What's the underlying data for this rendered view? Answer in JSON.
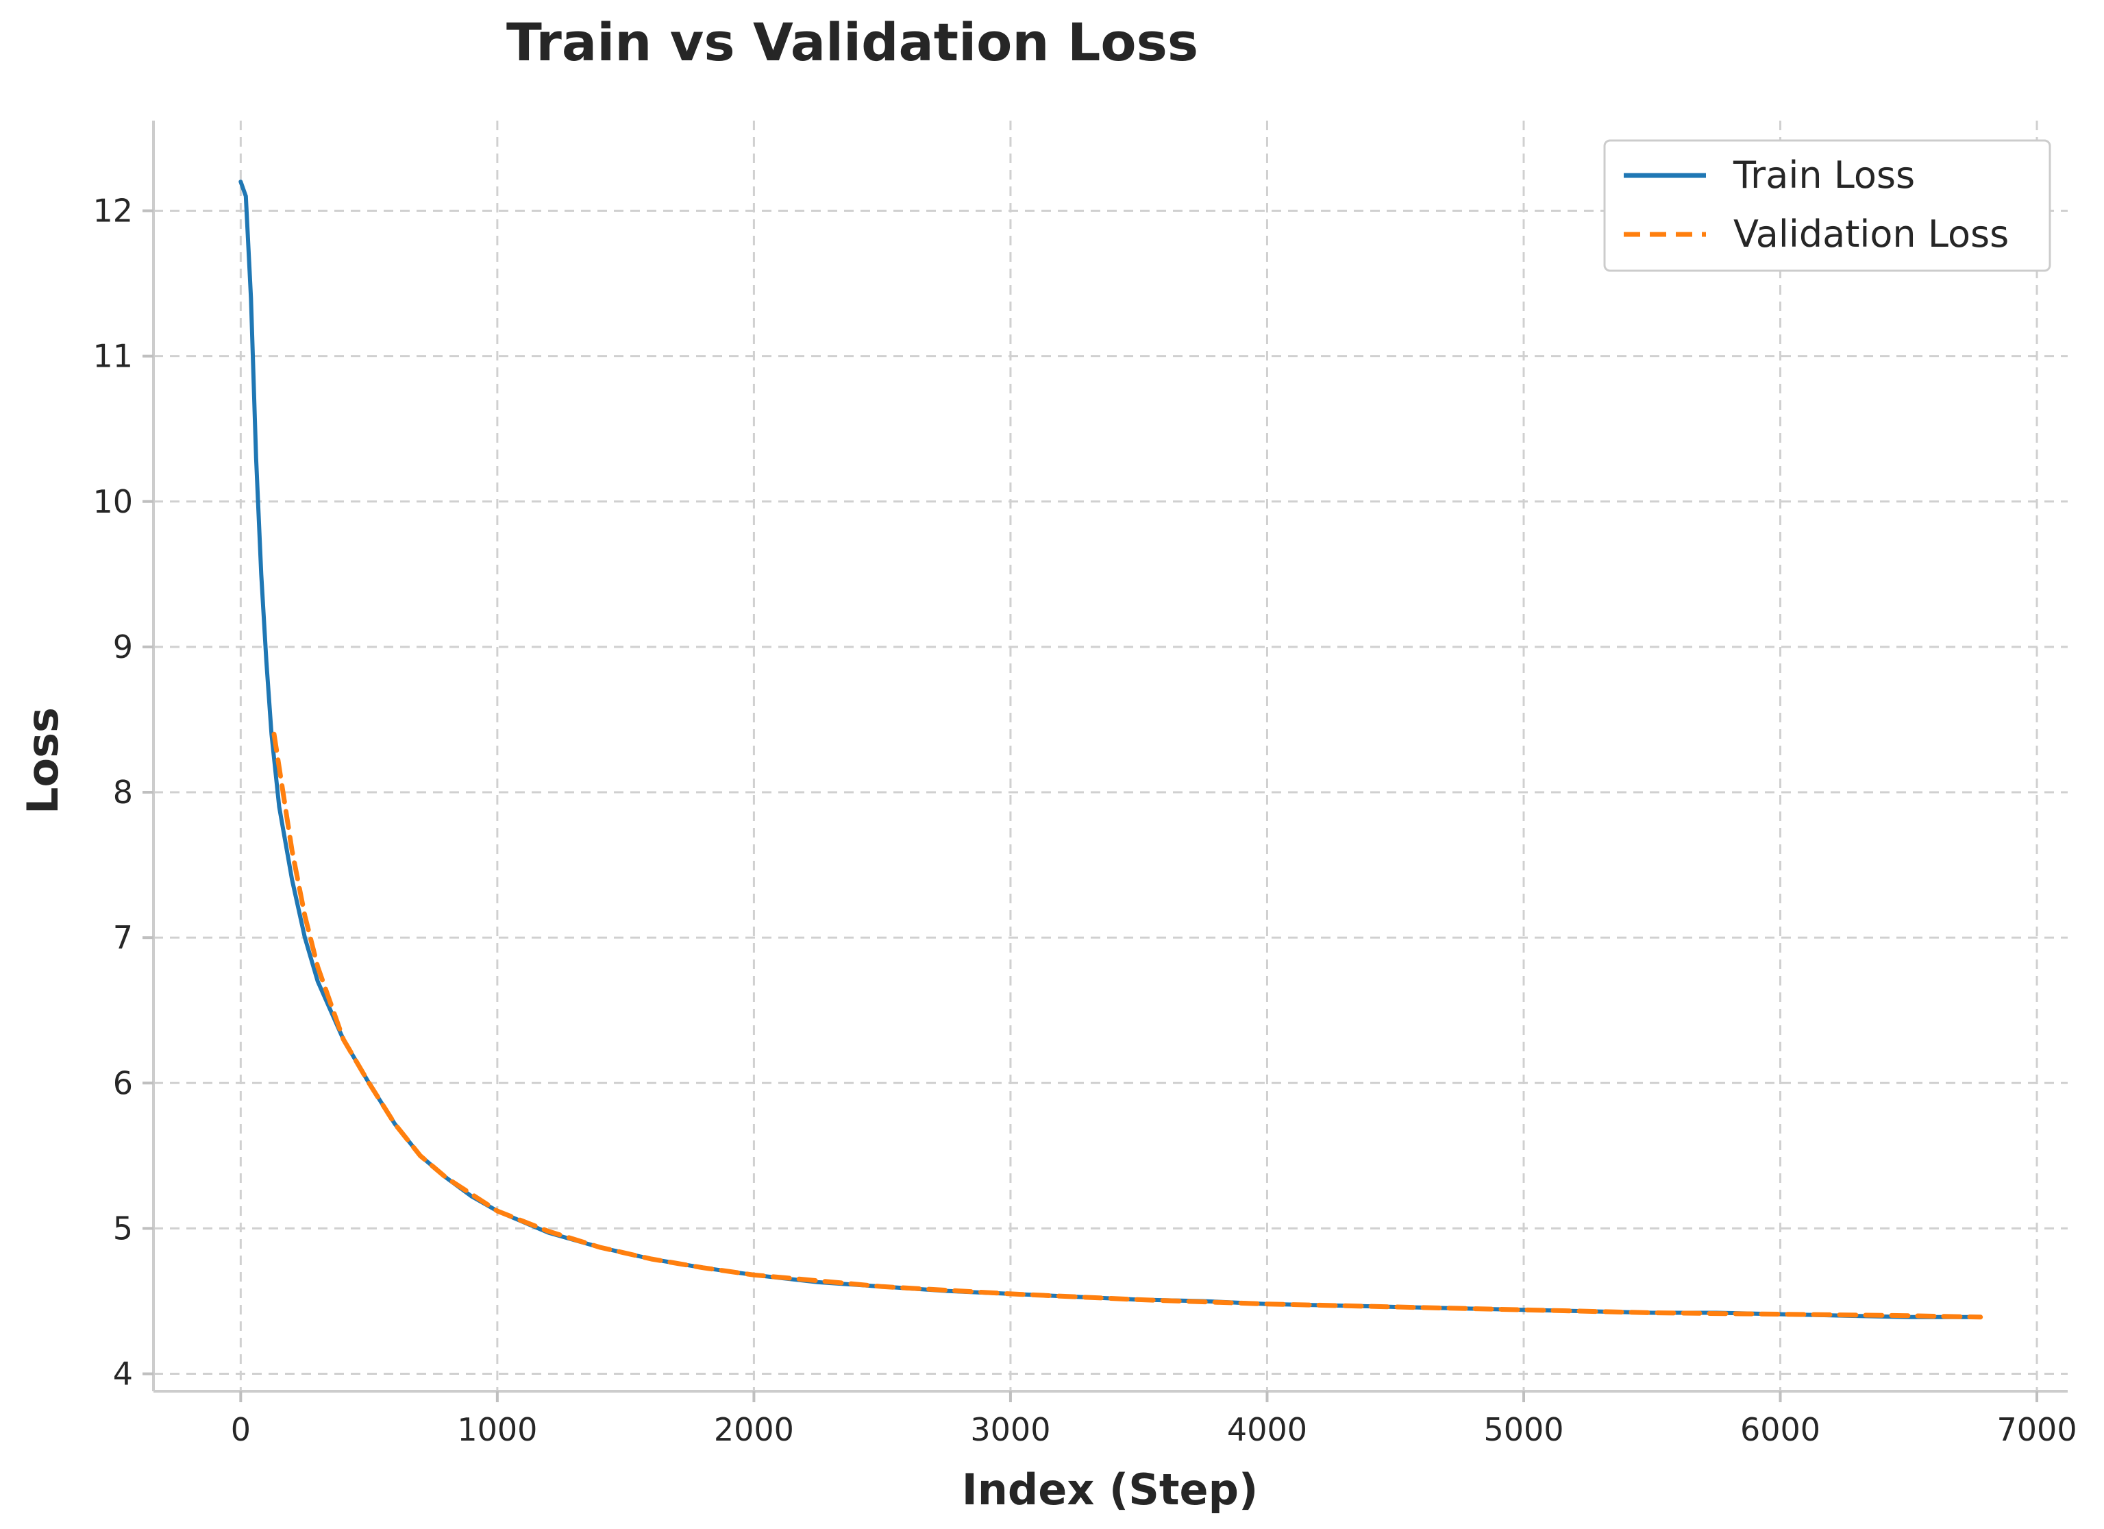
{
  "chart_data": {
    "type": "line",
    "title": "Train vs Validation Loss",
    "xlabel": "Index (Step)",
    "ylabel": "Loss",
    "xlim": [
      -340,
      7120
    ],
    "ylim": [
      3.88,
      12.62
    ],
    "xticks": [
      0,
      1000,
      2000,
      3000,
      4000,
      5000,
      6000,
      7000
    ],
    "yticks": [
      4,
      5,
      6,
      7,
      8,
      9,
      10,
      11,
      12
    ],
    "grid": true,
    "legend_position": "top-right",
    "series": [
      {
        "name": "Train Loss",
        "color": "#1f77b4",
        "style": "solid",
        "x": [
          0,
          20,
          40,
          60,
          80,
          100,
          120,
          150,
          200,
          250,
          300,
          400,
          500,
          600,
          700,
          800,
          900,
          1000,
          1200,
          1400,
          1600,
          1800,
          2000,
          2250,
          2500,
          2750,
          3000,
          3250,
          3500,
          3750,
          4000,
          4250,
          4500,
          4750,
          5000,
          5250,
          5500,
          5750,
          6000,
          6250,
          6500,
          6780
        ],
        "y": [
          12.2,
          12.1,
          11.4,
          10.3,
          9.5,
          8.9,
          8.4,
          7.9,
          7.4,
          7.0,
          6.7,
          6.3,
          6.0,
          5.72,
          5.5,
          5.35,
          5.22,
          5.12,
          4.97,
          4.87,
          4.79,
          4.73,
          4.68,
          4.63,
          4.6,
          4.57,
          4.55,
          4.53,
          4.51,
          4.5,
          4.48,
          4.47,
          4.46,
          4.45,
          4.44,
          4.43,
          4.42,
          4.42,
          4.41,
          4.4,
          4.39,
          4.39
        ]
      },
      {
        "name": "Validation Loss",
        "color": "#ff7f0e",
        "style": "dashed",
        "x": [
          130,
          200,
          250,
          300,
          400,
          500,
          600,
          700,
          800,
          1000,
          1200,
          1400,
          1600,
          1800,
          2000,
          2500,
          3000,
          3500,
          4000,
          4500,
          5000,
          5500,
          6000,
          6500,
          6780
        ],
        "y": [
          8.4,
          7.6,
          7.15,
          6.8,
          6.3,
          6.0,
          5.72,
          5.5,
          5.35,
          5.12,
          4.98,
          4.87,
          4.79,
          4.73,
          4.68,
          4.6,
          4.55,
          4.51,
          4.48,
          4.46,
          4.44,
          4.42,
          4.41,
          4.4,
          4.39
        ]
      }
    ]
  }
}
